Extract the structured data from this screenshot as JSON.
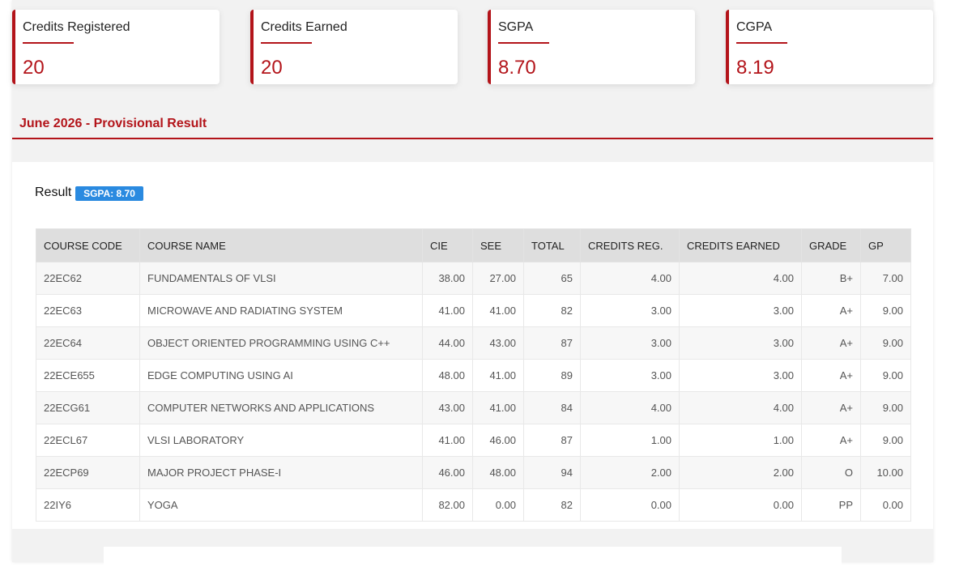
{
  "summary_cards": [
    {
      "label": "Credits Registered",
      "value": "20"
    },
    {
      "label": "Credits Earned",
      "value": "20"
    },
    {
      "label": "SGPA",
      "value": "8.70"
    },
    {
      "label": "CGPA",
      "value": "8.19"
    }
  ],
  "section": {
    "title": "June 2026 - Provisional Result"
  },
  "result": {
    "label": "Result",
    "sgpa_badge": "SGPA: 8.70"
  },
  "table": {
    "headers": [
      "COURSE CODE",
      "COURSE NAME",
      "CIE",
      "SEE",
      "TOTAL",
      "CREDITS REG.",
      "CREDITS EARNED",
      "GRADE",
      "GP"
    ],
    "rows": [
      [
        "22EC62",
        "FUNDAMENTALS OF VLSI",
        "38.00",
        "27.00",
        "65",
        "4.00",
        "4.00",
        "B+",
        "7.00"
      ],
      [
        "22EC63",
        "MICROWAVE AND RADIATING SYSTEM",
        "41.00",
        "41.00",
        "82",
        "3.00",
        "3.00",
        "A+",
        "9.00"
      ],
      [
        "22EC64",
        "OBJECT ORIENTED PROGRAMMING USING C++",
        "44.00",
        "43.00",
        "87",
        "3.00",
        "3.00",
        "A+",
        "9.00"
      ],
      [
        "22ECE655",
        "EDGE COMPUTING USING AI",
        "48.00",
        "41.00",
        "89",
        "3.00",
        "3.00",
        "A+",
        "9.00"
      ],
      [
        "22ECG61",
        "COMPUTER NETWORKS AND APPLICATIONS",
        "43.00",
        "41.00",
        "84",
        "4.00",
        "4.00",
        "A+",
        "9.00"
      ],
      [
        "22ECL67",
        "VLSI LABORATORY",
        "41.00",
        "46.00",
        "87",
        "1.00",
        "1.00",
        "A+",
        "9.00"
      ],
      [
        "22ECP69",
        "MAJOR PROJECT PHASE-I",
        "46.00",
        "48.00",
        "94",
        "2.00",
        "2.00",
        "O",
        "10.00"
      ],
      [
        "22IY6",
        "YOGA",
        "82.00",
        "0.00",
        "82",
        "0.00",
        "0.00",
        "PP",
        "0.00"
      ]
    ]
  },
  "colors": {
    "accent": "#b3141a",
    "badge": "#2a8ae0"
  }
}
